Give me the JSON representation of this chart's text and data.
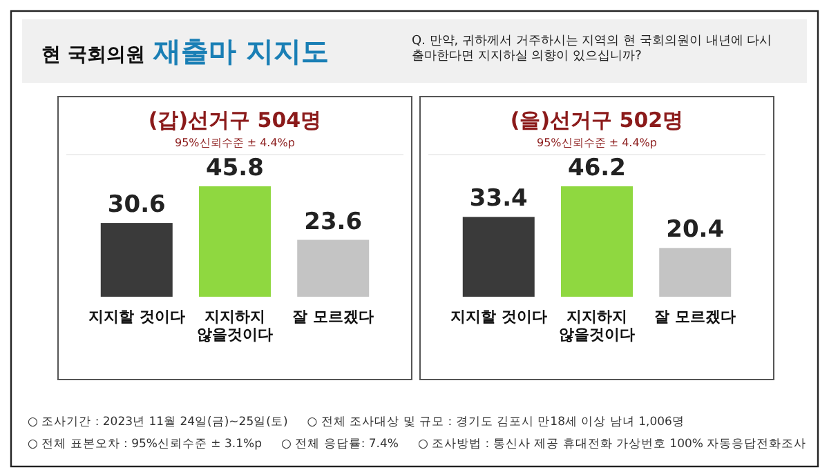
{
  "chart_data": [
    {
      "type": "other",
      "title": "현 국회의원 재출마 지지도",
      "subtitle": "Q. 만약, 귀하께서 거주하시는 지역의 현 국회의원이 내년에 다시 출마한다면 지지하실 의향이 있으십니까?",
      "annotations": [
        "○ 조사기간 : 2023년 11월 24일(금)~25일(토)",
        "○ 전체 조사대상 및 규모 : 경기도 김포시 만18세 이상 남녀 1,006명",
        "○ 전체 표본오차 : 95%신뢰수준 ± 3.1%p",
        "○ 전체 응답률: 7.4%",
        "○ 조사방법 : 통신사 제공 휴대전화 가상번호 100% 자동응답전화조사"
      ]
    },
    {
      "type": "bar",
      "title": "(갑)선거구 504명",
      "subtitle": "95%신뢰수준 ± 4.4%p",
      "categories": [
        "지지할 것이다",
        "지지하지\n않을것이다",
        "잘 모르겠다"
      ],
      "values": [
        30.6,
        45.8,
        23.6
      ],
      "colors": [
        "#3a3a3a",
        "#8fd840",
        "#c4c4c4"
      ],
      "data_labels": true
    },
    {
      "type": "bar",
      "title": "(을)선거구 502명",
      "subtitle": "95%신뢰수준 ± 4.4%p",
      "categories": [
        "지지할 것이다",
        "지지하지\n않을것이다",
        "잘 모르겠다"
      ],
      "values": [
        33.4,
        46.2,
        20.4
      ],
      "colors": [
        "#3a3a3a",
        "#8fd840",
        "#c4c4c4"
      ],
      "data_labels": true
    }
  ]
}
